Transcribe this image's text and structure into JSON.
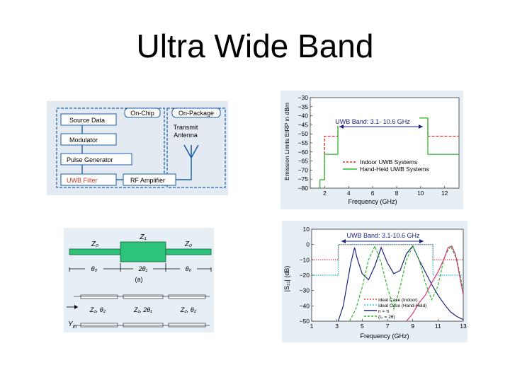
{
  "slide": {
    "title": "Ultra Wide Band"
  },
  "block_diagram": {
    "labels": {
      "on_chip": "On-Chip",
      "on_package": "On-Package",
      "source_data": "Source Data",
      "modulator": "Modulator",
      "pulse_generator": "Pulse Generator",
      "uwb_filter": "UWB Filter",
      "rf_amplifier": "RF Amplifier",
      "transmit_antenna_1": "Transmit",
      "transmit_antenna_2": "Antenna"
    },
    "colors": {
      "background": "#e4eaf2",
      "filter_text": "#c0392b",
      "lines": "#1a5fa8"
    }
  },
  "filter_schematic": {
    "labels": {
      "z0_left": "Z₀",
      "z1": "Z₁",
      "z0_right": "Z₀",
      "theta_left": "θ₀",
      "two_theta1": "2θ₁",
      "theta_right": "θ₀",
      "caption": "(a)",
      "z2_left": "Z₂, θ₂",
      "z1_two_theta": "Z₁, 2θ₁",
      "z2_right": "Z₂, θ₂",
      "yin": "Y",
      "yin_sub": "in"
    },
    "colors": {
      "line_fill": "#2ec37a",
      "background": "#e6eef6"
    }
  },
  "chart_data": [
    {
      "type": "line",
      "title": "UWB Band: 3.1- 10.6 GHz",
      "xlabel": "Frequency (GHz)",
      "ylabel": "Emission Limits EIRP in dBm",
      "xlim": [
        0.8,
        13.2
      ],
      "ylim": [
        -80,
        -30
      ],
      "xticks": [
        2,
        4,
        6,
        8,
        10,
        12
      ],
      "yticks": [
        -30,
        -35,
        -40,
        -45,
        -50,
        -55,
        -60,
        -65,
        -70,
        -75,
        -80
      ],
      "ytick_labels": [
        "−30",
        "−35",
        "−40",
        "−45",
        "−50",
        "−55",
        "−60",
        "−65",
        "−70",
        "−75",
        "−80"
      ],
      "grid": true,
      "legend_position": "bottom-right",
      "series": [
        {
          "name": "Indoor UWB Systems",
          "color": "#d92b2b",
          "style": "dashed",
          "x": [
            1.99,
            1.99,
            3.1,
            3.1,
            10.6,
            10.6,
            13.2
          ],
          "y": [
            -75.3,
            -51.3,
            -51.3,
            -41.3,
            -41.3,
            -51.3,
            -51.3
          ]
        },
        {
          "name": "Hand-Held UWB Systems",
          "color": "#2eb82e",
          "style": "solid",
          "x": [
            1.61,
            1.61,
            1.99,
            1.99,
            3.1,
            3.1,
            10.6,
            10.6,
            13.2
          ],
          "y": [
            -80,
            -75.3,
            -75.3,
            -61.3,
            -61.3,
            -41.3,
            -41.3,
            -61.3,
            -61.3
          ]
        }
      ]
    },
    {
      "type": "line",
      "title": "UWB Band: 3.1-10.6 GHz",
      "xlabel": "Frequency (GHz)",
      "ylabel": "|S₂₁| (dB)",
      "xlim": [
        1,
        13
      ],
      "ylim": [
        -50,
        10
      ],
      "xticks": [
        1,
        3,
        5,
        7,
        9,
        11,
        13
      ],
      "yticks": [
        10,
        0,
        -10,
        -20,
        -30,
        -40,
        -50
      ],
      "ytick_labels": [
        "10",
        "0",
        "−10",
        "−20",
        "−30",
        "−40",
        "−50"
      ],
      "grid": false,
      "legend_position": "bottom-right",
      "series": [
        {
          "name": "Ideal Case (Indoor)",
          "color": "#d92b2b",
          "style": "dotted",
          "x": [
            1,
            3.1,
            3.1,
            10.6,
            10.6,
            13
          ],
          "y": [
            -10,
            -10,
            0,
            0,
            -10,
            -10
          ]
        },
        {
          "name": "Ideal Case (Hand-Held)",
          "color": "#17b6d4",
          "style": "dotted",
          "x": [
            1,
            3.1,
            3.1,
            10.6,
            10.6,
            13
          ],
          "y": [
            -20,
            -20,
            0,
            0,
            -20,
            -20
          ]
        },
        {
          "name": "n = π",
          "color": "#1a237e",
          "style": "solid",
          "x": [
            3.1,
            3.5,
            3.8,
            4.1,
            4.4,
            4.6,
            5.0,
            5.5,
            6.0,
            6.5,
            7.0,
            7.5,
            8.0,
            8.5,
            9.0,
            9.5,
            10.0,
            10.5,
            11.0,
            11.5,
            12.0,
            12.5,
            13.0
          ],
          "y": [
            -50,
            -40,
            -26,
            -12,
            -2,
            -9,
            -19,
            -23,
            -14,
            -2,
            -12,
            -19,
            -17,
            -6,
            -1,
            -10,
            -18,
            -26,
            -33,
            -39,
            -44,
            -47,
            -49
          ]
        },
        {
          "name": "(Lᵢ = 2θ)",
          "color": "#2eb82e",
          "style": "dashed",
          "x": [
            4.0,
            4.5,
            5.0,
            5.5,
            6.0,
            6.5,
            7.0,
            7.5,
            8.0,
            8.5,
            9.0,
            9.5,
            10.0,
            10.5,
            11.0,
            11.5,
            12.0,
            12.5,
            13.0
          ],
          "y": [
            -50,
            -42,
            -28,
            -10,
            -1,
            -12,
            -28,
            -42,
            -28,
            -10,
            -1,
            -10,
            -25,
            -36,
            -27,
            -8,
            -1,
            -10,
            -30
          ]
        },
        {
          "name": "",
          "color": "#d63384",
          "style": "solid",
          "x": [
            8.5,
            9.0,
            9.5,
            10.0,
            10.5,
            11.0,
            11.5,
            11.8,
            12.1,
            12.4,
            12.7,
            13.0
          ],
          "y": [
            -50,
            -45,
            -38,
            -33,
            -25,
            -18,
            -9,
            -2,
            -1,
            -7,
            -20,
            -33
          ]
        }
      ]
    }
  ]
}
